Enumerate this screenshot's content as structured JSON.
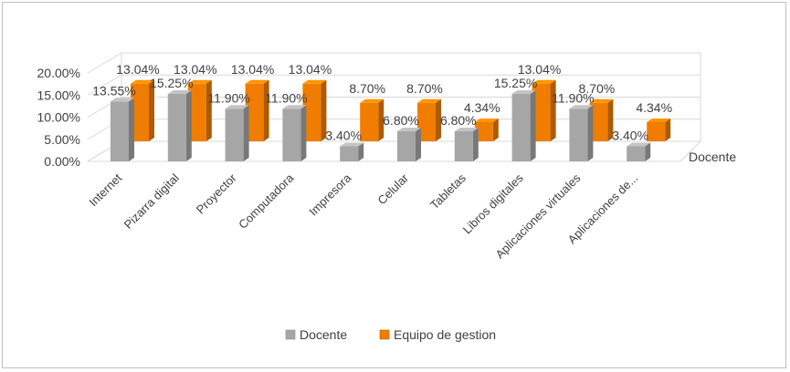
{
  "chart_data": {
    "type": "bar",
    "categories": [
      "Internet",
      "Pizarra digital",
      "Proyector",
      "Computadora",
      "Impresora",
      "Celular",
      "Tabletas",
      "Libros digitales",
      "Aplicaciones virtuales",
      "Aplicaciones de..."
    ],
    "series": [
      {
        "name": "Docente",
        "values": [
          13.55,
          15.25,
          11.9,
          11.9,
          3.4,
          6.8,
          6.8,
          15.25,
          11.9,
          3.4
        ],
        "labels": [
          "13.55%",
          "15.25%",
          "11.90%",
          "11.90%",
          "3.40%",
          "6.80%",
          "6.80%",
          "15.25%",
          "11.90%",
          "3.40%"
        ],
        "color": "#a6a6a6"
      },
      {
        "name": "Equipo de gestion",
        "values": [
          13.04,
          13.04,
          13.04,
          13.04,
          8.7,
          8.7,
          4.34,
          13.04,
          8.7,
          4.34
        ],
        "labels": [
          "13.04%",
          "13.04%",
          "13.04%",
          "13.04%",
          "8.70%",
          "8.70%",
          "4.34%",
          "13.04%",
          "8.70%",
          "4.34%"
        ],
        "color": "#f07d00"
      }
    ],
    "y_ticks": [
      "0.00%",
      "5.00%",
      "10.00%",
      "15.00%",
      "20.00%"
    ],
    "depth_label": "Docente",
    "ylim": [
      0,
      20
    ],
    "title": "",
    "xlabel": "",
    "ylabel": "",
    "legend_position": "bottom"
  }
}
